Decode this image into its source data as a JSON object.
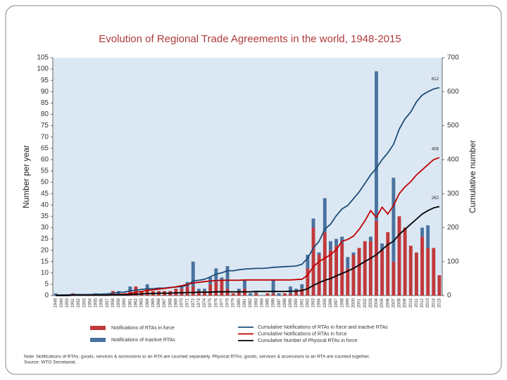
{
  "chart_data": {
    "type": "combo",
    "title": "Evolution of Regional Trade Agreements in the world, 1948-2015",
    "y_label": "Number per year",
    "y2_label": "Cumulative number",
    "note": "Note: Notifications of RTAs: goods, services & accessions to an RTA are counted separately. Physical RTAs: goods, services & accessions to an RTA are counted together.",
    "source": "Source: WTO Secretariat.",
    "categories": [
      "1948",
      "1949",
      "1950",
      "1951",
      "1952",
      "1953",
      "1954",
      "1955",
      "1956",
      "1957",
      "1958",
      "1959",
      "1960",
      "1961",
      "1962",
      "1963",
      "1964",
      "1965",
      "1966",
      "1967",
      "1968",
      "1969",
      "1970",
      "1971",
      "1972",
      "1973",
      "1974",
      "1975",
      "1976",
      "1977",
      "1978",
      "1979",
      "1980",
      "1981",
      "1982",
      "1983",
      "1984",
      "1985",
      "1986",
      "1987",
      "1988",
      "1989",
      "1990",
      "1991",
      "1992",
      "1993",
      "1994",
      "1995",
      "1996",
      "1997",
      "1998",
      "1999",
      "2000",
      "2001",
      "2002",
      "2003",
      "2004",
      "2005",
      "2006",
      "2007",
      "2008",
      "2009",
      "2010",
      "2011",
      "2012",
      "2013",
      "2014",
      "2015"
    ],
    "ylim": [
      0,
      105
    ],
    "yticks": [
      0,
      5,
      10,
      15,
      20,
      25,
      30,
      35,
      40,
      45,
      50,
      55,
      60,
      65,
      70,
      75,
      80,
      85,
      90,
      95,
      100,
      105
    ],
    "y2lim": [
      0,
      700
    ],
    "y2ticks": [
      0,
      100,
      200,
      300,
      400,
      500,
      600,
      700
    ],
    "grid": false,
    "series": [
      {
        "name": "Notifications of RTAs in force",
        "type": "bar",
        "color": "#c0393b",
        "values": [
          0,
          0,
          0,
          1,
          0,
          0,
          0,
          0,
          0,
          0,
          2,
          0,
          1,
          2,
          4,
          2,
          3,
          2,
          2,
          2,
          2,
          3,
          3,
          4,
          4,
          2,
          2,
          5,
          6,
          7,
          3,
          1,
          2,
          3,
          0,
          1,
          0,
          1,
          1,
          0,
          1,
          1,
          2,
          3,
          12,
          30,
          18,
          28,
          20,
          22,
          23,
          12,
          18,
          21,
          24,
          24,
          33,
          20,
          28,
          15,
          35,
          30,
          22,
          19,
          26,
          21,
          21,
          9
        ]
      },
      {
        "name": "Notifications of Inactive RTAs",
        "type": "bar",
        "color": "#4a72a0",
        "values": [
          1,
          0,
          0,
          0,
          0,
          0,
          0,
          1,
          0,
          0,
          0,
          2,
          0,
          2,
          0,
          0,
          2,
          0,
          0,
          0,
          0,
          0,
          1,
          2,
          11,
          1,
          1,
          3,
          6,
          1,
          10,
          0,
          1,
          4,
          1,
          1,
          0,
          0,
          6,
          1,
          0,
          3,
          1,
          2,
          6,
          4,
          1,
          15,
          4,
          3,
          3,
          5,
          1,
          0,
          0,
          2,
          66,
          3,
          0,
          37,
          0,
          0,
          0,
          0,
          4,
          10,
          0,
          0
        ]
      },
      {
        "name": "Cumulative Notifications of RTAs in force and inactive RTAs",
        "type": "line",
        "axis": "y2",
        "color": "#1f4e79",
        "label": "612",
        "values": [
          2,
          2,
          2,
          3,
          3,
          3,
          3,
          4,
          4,
          5,
          7,
          9,
          10,
          14,
          16,
          18,
          20,
          20,
          22,
          22,
          24,
          25,
          27,
          30,
          43,
          45,
          48,
          55,
          63,
          67,
          73,
          73,
          76,
          78,
          79,
          80,
          80,
          81,
          83,
          84,
          85,
          86,
          87,
          92,
          110,
          140,
          160,
          195,
          210,
          235,
          255,
          265,
          285,
          305,
          330,
          355,
          375,
          400,
          420,
          445,
          490,
          520,
          540,
          570,
          590,
          600,
          608,
          612
        ]
      },
      {
        "name": "Cumulative Notifications of RTAs in force",
        "type": "line",
        "axis": "y2",
        "color": "#c00000",
        "label": "406",
        "values": [
          0,
          0,
          0,
          1,
          1,
          1,
          1,
          1,
          1,
          1,
          3,
          3,
          4,
          6,
          10,
          12,
          15,
          17,
          19,
          21,
          23,
          26,
          29,
          33,
          37,
          39,
          41,
          43,
          44,
          45,
          45,
          45,
          45,
          46,
          46,
          46,
          46,
          46,
          46,
          46,
          46,
          46,
          47,
          48,
          60,
          85,
          100,
          110,
          120,
          135,
          160,
          165,
          175,
          195,
          220,
          250,
          230,
          260,
          240,
          265,
          300,
          320,
          335,
          355,
          370,
          385,
          400,
          406
        ]
      },
      {
        "name": "Cumulative Number of Physical RTAs in force",
        "type": "line",
        "axis": "y2",
        "color": "#000000",
        "label": "262",
        "values": [
          0,
          0,
          0,
          1,
          1,
          1,
          1,
          1,
          1,
          1,
          2,
          2,
          2,
          3,
          4,
          5,
          6,
          6,
          7,
          7,
          7,
          8,
          8,
          9,
          9,
          10,
          10,
          10,
          11,
          11,
          11,
          11,
          11,
          11,
          11,
          12,
          12,
          12,
          12,
          12,
          12,
          13,
          13,
          15,
          20,
          30,
          38,
          45,
          50,
          58,
          65,
          72,
          80,
          90,
          100,
          110,
          120,
          135,
          150,
          160,
          180,
          195,
          210,
          225,
          240,
          250,
          258,
          262
        ]
      }
    ]
  }
}
